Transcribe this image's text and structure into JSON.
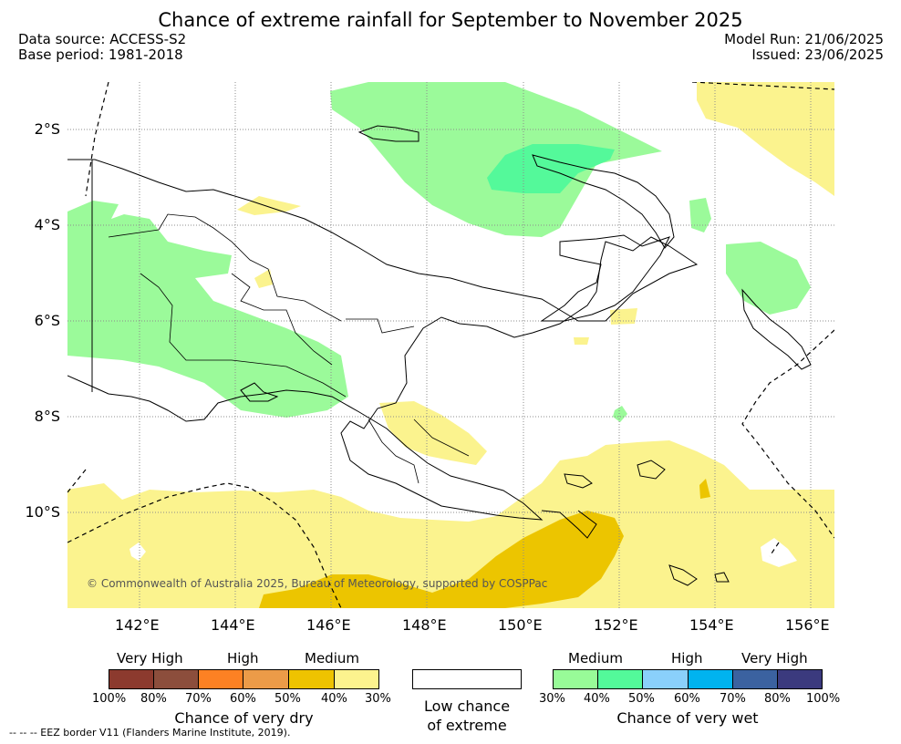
{
  "header": {
    "title": "Chance of extreme rainfall for September to November 2025",
    "data_source": "Data source: ACCESS-S2",
    "base_period": "Base period: 1981-2018",
    "model_run": "Model Run: 21/06/2025",
    "issued": "Issued: 23/06/2025"
  },
  "map": {
    "credit": "© Commonwealth of Australia 2025, Bureau of Meteorology, supported by COSPPac",
    "lat_labels": [
      "2°S",
      "4°S",
      "6°S",
      "8°S",
      "10°S"
    ],
    "lon_labels": [
      "142°E",
      "144°E",
      "146°E",
      "148°E",
      "150°E",
      "152°E",
      "154°E",
      "156°E"
    ],
    "colors": {
      "dry_medium_light": "#fbf38e",
      "dry_medium_dark": "#ecc500",
      "wet_medium_light": "#9bfa9a",
      "wet_medium_dark": "#54f99a",
      "grid": "#8c8c8c"
    }
  },
  "legend": {
    "dry": {
      "headers": [
        "Very High",
        "High",
        "Medium"
      ],
      "colors": [
        "#8c3a2e",
        "#8c4e3c",
        "#fd8123",
        "#ec9b48",
        "#eec300",
        "#fcf38e"
      ],
      "percents": [
        "100%",
        "80%",
        "70%",
        "60%",
        "50%",
        "40%",
        "30%"
      ],
      "caption": "Chance of very dry"
    },
    "low": {
      "caption_line1": "Low chance",
      "caption_line2": "of extreme"
    },
    "wet": {
      "headers": [
        "Medium",
        "High",
        "Very High"
      ],
      "colors": [
        "#98fb98",
        "#53f99a",
        "#8ad0fb",
        "#00b3ef",
        "#3b62a0",
        "#3b3a7e"
      ],
      "percents": [
        "30%",
        "40%",
        "50%",
        "60%",
        "70%",
        "80%",
        "100%"
      ],
      "caption": "Chance of very wet"
    }
  },
  "footer": {
    "eez": "--  --  -- EEZ border V11 (Flanders Marine Institute, 2019)."
  }
}
